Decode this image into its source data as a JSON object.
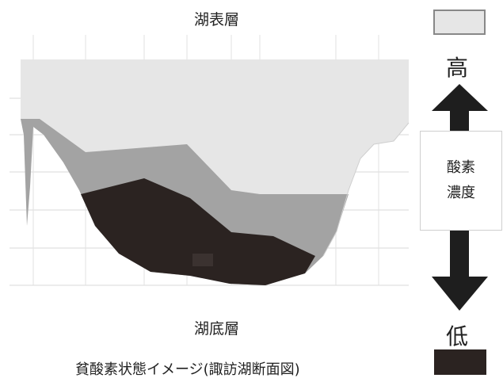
{
  "labels": {
    "top": "湖表層",
    "bottom": "湖底層",
    "caption": "貧酸素状態イメージ(諏訪湖断面図)"
  },
  "legend": {
    "high": "高",
    "low": "低",
    "title_line1": "酸素",
    "title_line2": "濃度"
  },
  "colors": {
    "high_oxygen": "#e6e6e6",
    "mid_oxygen": "#a3a3a3",
    "low_oxygen": "#2b2321",
    "arrow": "#1e1e1e"
  }
}
